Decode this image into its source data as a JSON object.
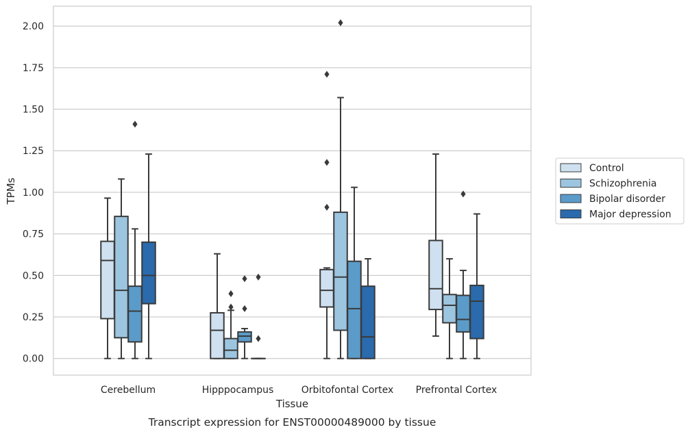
{
  "chart_data": {
    "type": "box",
    "xlabel": "Tissue",
    "ylabel": "TPMs",
    "caption": "Transcript expression for ENST00000489000 by tissue",
    "ylim": [
      -0.1,
      2.12
    ],
    "yticks": [
      0.0,
      0.25,
      0.5,
      0.75,
      1.0,
      1.25,
      1.5,
      1.75,
      2.0
    ],
    "ytick_labels": [
      "0.00",
      "0.25",
      "0.50",
      "0.75",
      "1.00",
      "1.25",
      "1.50",
      "1.75",
      "2.00"
    ],
    "grid": "horizontal",
    "legend_position": "right",
    "categories": [
      "Cerebellum",
      "Hipppocampus",
      "Orbitofontal Cortex",
      "Prefrontal Cortex"
    ],
    "series": [
      {
        "name": "Control",
        "color": "#cfe0f0",
        "boxes": [
          {
            "min": 0.0,
            "q1": 0.24,
            "median": 0.59,
            "q3": 0.705,
            "max": 0.965,
            "outliers": []
          },
          {
            "min": 0.0,
            "q1": 0.0,
            "median": 0.17,
            "q3": 0.275,
            "max": 0.63,
            "outliers": []
          },
          {
            "min": 0.0,
            "q1": 0.31,
            "median": 0.41,
            "q3": 0.535,
            "max": 0.545,
            "outliers": [
              0.91,
              1.18,
              1.71
            ]
          },
          {
            "min": 0.135,
            "q1": 0.295,
            "median": 0.42,
            "q3": 0.71,
            "max": 1.23,
            "outliers": []
          }
        ]
      },
      {
        "name": "Schizophrenia",
        "color": "#9cc5e0",
        "boxes": [
          {
            "min": 0.0,
            "q1": 0.125,
            "median": 0.41,
            "q3": 0.855,
            "max": 1.08,
            "outliers": []
          },
          {
            "min": 0.0,
            "q1": 0.0,
            "median": 0.05,
            "q3": 0.12,
            "max": 0.29,
            "outliers": [
              0.31,
              0.39
            ]
          },
          {
            "min": 0.0,
            "q1": 0.17,
            "median": 0.49,
            "q3": 0.88,
            "max": 1.57,
            "outliers": [
              2.02
            ]
          },
          {
            "min": 0.0,
            "q1": 0.215,
            "median": 0.32,
            "q3": 0.385,
            "max": 0.6,
            "outliers": []
          }
        ]
      },
      {
        "name": "Bipolar disorder",
        "color": "#5b9bc9",
        "boxes": [
          {
            "min": 0.0,
            "q1": 0.1,
            "median": 0.285,
            "q3": 0.435,
            "max": 0.78,
            "outliers": [
              1.41
            ]
          },
          {
            "min": 0.0,
            "q1": 0.1,
            "median": 0.135,
            "q3": 0.16,
            "max": 0.18,
            "outliers": [
              0.3,
              0.48
            ]
          },
          {
            "min": 0.0,
            "q1": 0.0,
            "median": 0.3,
            "q3": 0.585,
            "max": 1.03,
            "outliers": []
          },
          {
            "min": 0.0,
            "q1": 0.16,
            "median": 0.235,
            "q3": 0.38,
            "max": 0.53,
            "outliers": [
              0.99
            ]
          }
        ]
      },
      {
        "name": "Major depression",
        "color": "#2a6aad",
        "boxes": [
          {
            "min": 0.0,
            "q1": 0.33,
            "median": 0.5,
            "q3": 0.7,
            "max": 1.23,
            "outliers": []
          },
          {
            "min": 0.0,
            "q1": 0.0,
            "median": 0.0,
            "q3": 0.0,
            "max": 0.0,
            "outliers": [
              0.12,
              0.49
            ]
          },
          {
            "min": 0.0,
            "q1": 0.0,
            "median": 0.13,
            "q3": 0.435,
            "max": 0.6,
            "outliers": []
          },
          {
            "min": 0.0,
            "q1": 0.12,
            "median": 0.345,
            "q3": 0.44,
            "max": 0.87,
            "outliers": []
          }
        ]
      }
    ]
  }
}
